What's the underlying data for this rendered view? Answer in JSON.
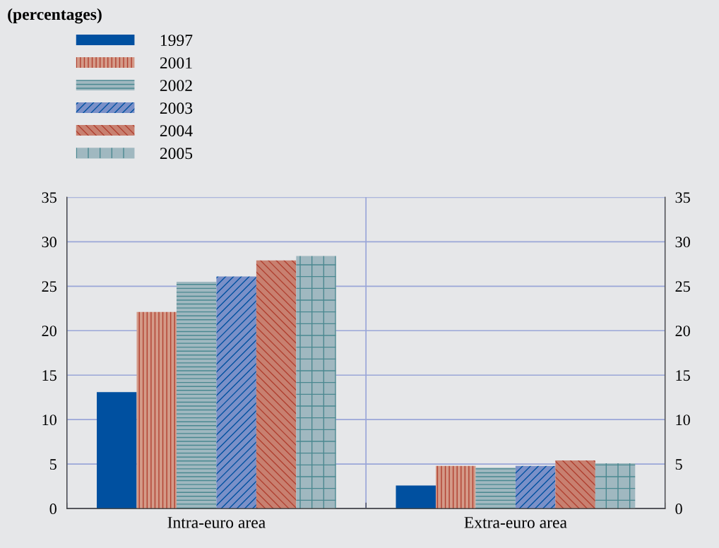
{
  "chart_data": {
    "type": "bar",
    "title": "(percentages)",
    "categories": [
      "Intra-euro area",
      "Extra-euro area"
    ],
    "series": [
      {
        "name": "1997",
        "color": "#0050a0",
        "values": [
          13.1,
          2.6
        ]
      },
      {
        "name": "2001",
        "color": "#d49a88",
        "values": [
          22.1,
          4.8
        ]
      },
      {
        "name": "2002",
        "color": "#a0b8c0",
        "values": [
          25.5,
          4.6
        ]
      },
      {
        "name": "2003",
        "color": "#7a90c8",
        "values": [
          26.1,
          4.8
        ]
      },
      {
        "name": "2004",
        "color": "#c88070",
        "values": [
          27.9,
          5.4
        ]
      },
      {
        "name": "2005",
        "color": "#a0b8c0",
        "values": [
          28.4,
          5.1
        ]
      }
    ],
    "ylim": [
      0,
      35
    ],
    "yticks": [
      0,
      5,
      10,
      15,
      20,
      25,
      30,
      35
    ],
    "y2lim": [
      0,
      35
    ],
    "y2ticks": [
      0,
      5,
      10,
      15,
      20,
      25,
      30,
      35
    ],
    "grid": true,
    "legend": "top left"
  }
}
